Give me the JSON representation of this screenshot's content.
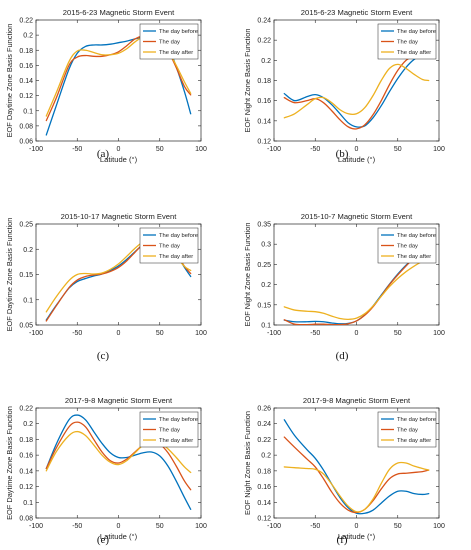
{
  "figure": {
    "panels": [
      {
        "label": "(a)"
      },
      {
        "label": "(b)"
      },
      {
        "label": "(c)"
      },
      {
        "label": "(d)"
      },
      {
        "label": "(e)"
      },
      {
        "label": "(f)"
      }
    ]
  },
  "chart_data": [
    {
      "type": "line",
      "title": "2015-6-23 Magnetic Storm Event",
      "xlabel": "Latitude (°)",
      "ylabel": "EOF Daytime Zone Basis Function",
      "xlim": [
        -100,
        100
      ],
      "ylim": [
        0.06,
        0.22
      ],
      "xticks": [
        -100,
        -50,
        0,
        50,
        100
      ],
      "yticks": [
        0.06,
        0.08,
        0.1,
        0.12,
        0.14,
        0.16,
        0.18,
        0.2,
        0.22
      ],
      "ytick_labels": [
        "0.06",
        "0.08",
        "0.1",
        "0.12",
        "0.14",
        "0.16",
        "0.18",
        "0.2",
        "0.22"
      ],
      "legend": "top-right",
      "series": [
        {
          "name": "The day before",
          "color": "#0072BD",
          "x": [
            -87.5,
            -75,
            -60,
            -50,
            -40,
            -30,
            -20,
            -10,
            0,
            10,
            20,
            30,
            40,
            50,
            60,
            70,
            80,
            87.5
          ],
          "y": [
            0.068,
            0.108,
            0.155,
            0.176,
            0.185,
            0.187,
            0.187,
            0.188,
            0.19,
            0.192,
            0.195,
            0.197,
            0.198,
            0.197,
            0.186,
            0.158,
            0.125,
            0.096
          ]
        },
        {
          "name": "The day",
          "color": "#D95319",
          "x": [
            -87.5,
            -75,
            -60,
            -50,
            -40,
            -30,
            -20,
            -10,
            0,
            10,
            20,
            30,
            40,
            50,
            60,
            70,
            80,
            87.5
          ],
          "y": [
            0.087,
            0.118,
            0.16,
            0.171,
            0.173,
            0.172,
            0.172,
            0.174,
            0.178,
            0.186,
            0.195,
            0.199,
            0.199,
            0.196,
            0.18,
            0.157,
            0.132,
            0.121
          ]
        },
        {
          "name": "The day after",
          "color": "#EDB120",
          "x": [
            -87.5,
            -75,
            -60,
            -50,
            -40,
            -30,
            -20,
            -10,
            0,
            10,
            20,
            30,
            40,
            50,
            60,
            70,
            80,
            87.5
          ],
          "y": [
            0.093,
            0.125,
            0.165,
            0.179,
            0.18,
            0.177,
            0.174,
            0.174,
            0.176,
            0.182,
            0.191,
            0.198,
            0.2,
            0.196,
            0.18,
            0.16,
            0.138,
            0.123
          ]
        }
      ]
    },
    {
      "type": "line",
      "title": "2015-6-23 Magnetic Storm Event",
      "xlabel": "Latitude (°)",
      "ylabel": "EOF Night Zone Basis Function",
      "xlim": [
        -100,
        100
      ],
      "ylim": [
        0.12,
        0.24
      ],
      "xticks": [
        -100,
        -50,
        0,
        50,
        100
      ],
      "yticks": [
        0.12,
        0.14,
        0.16,
        0.18,
        0.2,
        0.22,
        0.24
      ],
      "ytick_labels": [
        "0.12",
        "0.14",
        "0.16",
        "0.18",
        "0.2",
        "0.22",
        "0.24"
      ],
      "legend": "top-right",
      "series": [
        {
          "name": "The day before",
          "color": "#0072BD",
          "x": [
            -87.5,
            -75,
            -60,
            -50,
            -40,
            -30,
            -20,
            -10,
            0,
            10,
            20,
            30,
            40,
            50,
            60,
            70,
            80,
            87.5
          ],
          "y": [
            0.167,
            0.16,
            0.164,
            0.166,
            0.163,
            0.156,
            0.147,
            0.138,
            0.134,
            0.135,
            0.143,
            0.155,
            0.169,
            0.182,
            0.193,
            0.201,
            0.205,
            0.207
          ]
        },
        {
          "name": "The day",
          "color": "#D95319",
          "x": [
            -87.5,
            -75,
            -60,
            -50,
            -40,
            -30,
            -20,
            -10,
            0,
            10,
            20,
            30,
            40,
            50,
            60,
            70,
            80,
            87.5
          ],
          "y": [
            0.163,
            0.158,
            0.16,
            0.162,
            0.158,
            0.15,
            0.141,
            0.134,
            0.132,
            0.136,
            0.146,
            0.16,
            0.176,
            0.19,
            0.2,
            0.204,
            0.206,
            0.207
          ]
        },
        {
          "name": "The day after",
          "color": "#EDB120",
          "x": [
            -87.5,
            -75,
            -60,
            -50,
            -40,
            -30,
            -20,
            -10,
            0,
            10,
            20,
            30,
            40,
            50,
            60,
            70,
            80,
            87.5
          ],
          "y": [
            0.143,
            0.147,
            0.156,
            0.162,
            0.163,
            0.158,
            0.151,
            0.147,
            0.147,
            0.153,
            0.165,
            0.18,
            0.192,
            0.196,
            0.192,
            0.186,
            0.181,
            0.18
          ]
        }
      ]
    },
    {
      "type": "line",
      "title": "2015-10-17 Magnetic Storm Event",
      "xlabel": "",
      "ylabel": "EOF Daytime Zone Basis Function",
      "xlim": [
        -100,
        100
      ],
      "ylim": [
        0.05,
        0.25
      ],
      "xticks": [
        -100,
        -50,
        0,
        50,
        100
      ],
      "yticks": [
        0.05,
        0.1,
        0.15,
        0.2,
        0.25
      ],
      "ytick_labels": [
        "0.05",
        "0.1",
        "0.15",
        "0.2",
        "0.25"
      ],
      "legend": "top-right",
      "series": [
        {
          "name": "The day before",
          "color": "#0072BD",
          "x": [
            -87.5,
            -75,
            -60,
            -50,
            -40,
            -30,
            -20,
            -10,
            0,
            10,
            20,
            30,
            40,
            50,
            60,
            70,
            80,
            87.5
          ],
          "y": [
            0.06,
            0.09,
            0.123,
            0.136,
            0.142,
            0.147,
            0.151,
            0.158,
            0.167,
            0.18,
            0.195,
            0.21,
            0.222,
            0.224,
            0.214,
            0.191,
            0.164,
            0.146
          ]
        },
        {
          "name": "The day",
          "color": "#D95319",
          "x": [
            -87.5,
            -75,
            -60,
            -50,
            -40,
            -30,
            -20,
            -10,
            0,
            10,
            20,
            30,
            40,
            50,
            60,
            70,
            80,
            87.5
          ],
          "y": [
            0.058,
            0.089,
            0.124,
            0.139,
            0.146,
            0.149,
            0.151,
            0.156,
            0.164,
            0.177,
            0.194,
            0.211,
            0.225,
            0.228,
            0.217,
            0.192,
            0.166,
            0.152
          ]
        },
        {
          "name": "The day after",
          "color": "#EDB120",
          "x": [
            -87.5,
            -75,
            -60,
            -50,
            -40,
            -30,
            -20,
            -10,
            0,
            10,
            20,
            30,
            40,
            50,
            60,
            70,
            80,
            87.5
          ],
          "y": [
            0.076,
            0.107,
            0.138,
            0.15,
            0.152,
            0.151,
            0.153,
            0.16,
            0.171,
            0.186,
            0.202,
            0.215,
            0.222,
            0.22,
            0.207,
            0.186,
            0.166,
            0.158
          ]
        }
      ]
    },
    {
      "type": "line",
      "title": "2015-10-7 Magnetic Storm Event",
      "xlabel": "",
      "ylabel": "EOF Night Zone Basis Function",
      "xlim": [
        -100,
        100
      ],
      "ylim": [
        0.1,
        0.35
      ],
      "xticks": [
        -100,
        -50,
        0,
        50,
        100
      ],
      "yticks": [
        0.1,
        0.15,
        0.2,
        0.25,
        0.3,
        0.35
      ],
      "ytick_labels": [
        "0.1",
        "0.15",
        "0.2",
        "0.25",
        "0.3",
        "0.35"
      ],
      "legend": "top-right",
      "series": [
        {
          "name": "The day before",
          "color": "#0072BD",
          "x": [
            -87.5,
            -75,
            -60,
            -50,
            -40,
            -30,
            -20,
            -10,
            0,
            10,
            20,
            30,
            40,
            50,
            60,
            70,
            80,
            87.5
          ],
          "y": [
            0.112,
            0.108,
            0.108,
            0.109,
            0.108,
            0.105,
            0.103,
            0.104,
            0.11,
            0.125,
            0.147,
            0.174,
            0.201,
            0.226,
            0.248,
            0.266,
            0.282,
            0.293
          ]
        },
        {
          "name": "The day",
          "color": "#D95319",
          "x": [
            -87.5,
            -75,
            -60,
            -50,
            -40,
            -30,
            -20,
            -10,
            0,
            10,
            20,
            30,
            40,
            50,
            60,
            70,
            80,
            87.5
          ],
          "y": [
            0.113,
            0.102,
            0.101,
            0.102,
            0.102,
            0.101,
            0.101,
            0.103,
            0.11,
            0.124,
            0.145,
            0.172,
            0.2,
            0.224,
            0.246,
            0.266,
            0.283,
            0.295
          ]
        },
        {
          "name": "The day after",
          "color": "#EDB120",
          "x": [
            -87.5,
            -75,
            -60,
            -50,
            -40,
            -30,
            -20,
            -10,
            0,
            10,
            20,
            30,
            40,
            50,
            60,
            70,
            80,
            87.5
          ],
          "y": [
            0.145,
            0.137,
            0.134,
            0.133,
            0.129,
            0.122,
            0.116,
            0.114,
            0.117,
            0.128,
            0.147,
            0.171,
            0.195,
            0.215,
            0.232,
            0.246,
            0.258,
            0.266
          ]
        }
      ]
    },
    {
      "type": "line",
      "title": "2017-9-8 Magnetic Storm Event",
      "xlabel": "Latitude (°)",
      "ylabel": "EOF Daytime Zone Basis Function",
      "xlim": [
        -100,
        100
      ],
      "ylim": [
        0.08,
        0.22
      ],
      "xticks": [
        -100,
        -50,
        0,
        50,
        100
      ],
      "yticks": [
        0.08,
        0.1,
        0.12,
        0.14,
        0.16,
        0.18,
        0.2,
        0.22
      ],
      "ytick_labels": [
        "0.08",
        "0.1",
        "0.12",
        "0.14",
        "0.16",
        "0.18",
        "0.2",
        "0.22"
      ],
      "legend": "top-right",
      "series": [
        {
          "name": "The day before",
          "color": "#0072BD",
          "x": [
            -87.5,
            -75,
            -60,
            -50,
            -40,
            -30,
            -20,
            -10,
            0,
            10,
            20,
            30,
            40,
            50,
            60,
            70,
            80,
            87.5
          ],
          "y": [
            0.143,
            0.175,
            0.205,
            0.211,
            0.205,
            0.19,
            0.175,
            0.163,
            0.157,
            0.157,
            0.16,
            0.163,
            0.164,
            0.159,
            0.146,
            0.127,
            0.106,
            0.091
          ]
        },
        {
          "name": "The day",
          "color": "#D95319",
          "x": [
            -87.5,
            -75,
            -60,
            -50,
            -40,
            -30,
            -20,
            -10,
            0,
            10,
            20,
            30,
            40,
            50,
            60,
            70,
            80,
            87.5
          ],
          "y": [
            0.143,
            0.17,
            0.196,
            0.202,
            0.196,
            0.18,
            0.164,
            0.153,
            0.15,
            0.155,
            0.164,
            0.173,
            0.177,
            0.174,
            0.163,
            0.146,
            0.127,
            0.116
          ]
        },
        {
          "name": "The day after",
          "color": "#EDB120",
          "x": [
            -87.5,
            -75,
            -60,
            -50,
            -40,
            -30,
            -20,
            -10,
            0,
            10,
            20,
            30,
            40,
            50,
            60,
            70,
            80,
            87.5
          ],
          "y": [
            0.14,
            0.165,
            0.185,
            0.19,
            0.185,
            0.173,
            0.16,
            0.151,
            0.148,
            0.153,
            0.163,
            0.173,
            0.178,
            0.176,
            0.168,
            0.157,
            0.145,
            0.138
          ]
        }
      ]
    },
    {
      "type": "line",
      "title": "2017-9-8 Magnetic Storm Event",
      "xlabel": "Latitude (°)",
      "ylabel": "EOF Night Zone Basis Function",
      "xlim": [
        -100,
        100
      ],
      "ylim": [
        0.12,
        0.26
      ],
      "xticks": [
        -100,
        -50,
        0,
        50,
        100
      ],
      "yticks": [
        0.12,
        0.14,
        0.16,
        0.18,
        0.2,
        0.22,
        0.24,
        0.26
      ],
      "ytick_labels": [
        "0.12",
        "0.14",
        "0.16",
        "0.18",
        "0.2",
        "0.22",
        "0.24",
        "0.26"
      ],
      "legend": "top-right",
      "series": [
        {
          "name": "The day before",
          "color": "#0072BD",
          "x": [
            -87.5,
            -75,
            -60,
            -50,
            -40,
            -30,
            -20,
            -10,
            0,
            10,
            20,
            30,
            40,
            50,
            60,
            70,
            80,
            87.5
          ],
          "y": [
            0.245,
            0.225,
            0.207,
            0.196,
            0.181,
            0.163,
            0.146,
            0.133,
            0.126,
            0.126,
            0.13,
            0.139,
            0.148,
            0.154,
            0.154,
            0.151,
            0.15,
            0.151
          ]
        },
        {
          "name": "The day",
          "color": "#D95319",
          "x": [
            -87.5,
            -75,
            -60,
            -50,
            -40,
            -30,
            -20,
            -10,
            0,
            10,
            20,
            30,
            40,
            50,
            60,
            70,
            80,
            87.5
          ],
          "y": [
            0.223,
            0.21,
            0.195,
            0.185,
            0.17,
            0.153,
            0.139,
            0.13,
            0.127,
            0.131,
            0.142,
            0.157,
            0.17,
            0.176,
            0.177,
            0.178,
            0.179,
            0.181
          ]
        },
        {
          "name": "The day after",
          "color": "#EDB120",
          "x": [
            -87.5,
            -75,
            -60,
            -50,
            -40,
            -30,
            -20,
            -10,
            0,
            10,
            20,
            30,
            40,
            50,
            60,
            70,
            80,
            87.5
          ],
          "y": [
            0.185,
            0.184,
            0.183,
            0.182,
            0.176,
            0.163,
            0.148,
            0.135,
            0.128,
            0.131,
            0.144,
            0.164,
            0.182,
            0.19,
            0.19,
            0.186,
            0.183,
            0.181
          ]
        }
      ]
    }
  ]
}
